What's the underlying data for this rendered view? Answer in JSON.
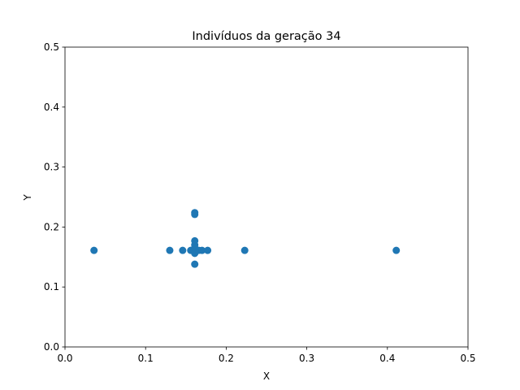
{
  "chart_data": {
    "type": "scatter",
    "title": "Indivíduos da geração 34",
    "xlabel": "X",
    "ylabel": "Y",
    "xlim": [
      0,
      0.5
    ],
    "ylim": [
      0,
      0.5
    ],
    "xticks": [
      "0.0",
      "0.1",
      "0.2",
      "0.3",
      "0.4",
      "0.5"
    ],
    "yticks": [
      "0.0",
      "0.1",
      "0.2",
      "0.3",
      "0.4",
      "0.5"
    ],
    "grid": false,
    "point_color": "#1f77b4",
    "points": [
      {
        "x": 0.036,
        "y": 0.161
      },
      {
        "x": 0.13,
        "y": 0.161
      },
      {
        "x": 0.146,
        "y": 0.161
      },
      {
        "x": 0.156,
        "y": 0.161
      },
      {
        "x": 0.161,
        "y": 0.161
      },
      {
        "x": 0.161,
        "y": 0.156
      },
      {
        "x": 0.161,
        "y": 0.165
      },
      {
        "x": 0.161,
        "y": 0.17
      },
      {
        "x": 0.161,
        "y": 0.177
      },
      {
        "x": 0.161,
        "y": 0.138
      },
      {
        "x": 0.161,
        "y": 0.221
      },
      {
        "x": 0.161,
        "y": 0.224
      },
      {
        "x": 0.166,
        "y": 0.161
      },
      {
        "x": 0.17,
        "y": 0.161
      },
      {
        "x": 0.177,
        "y": 0.161
      },
      {
        "x": 0.223,
        "y": 0.161
      },
      {
        "x": 0.411,
        "y": 0.161
      }
    ]
  }
}
